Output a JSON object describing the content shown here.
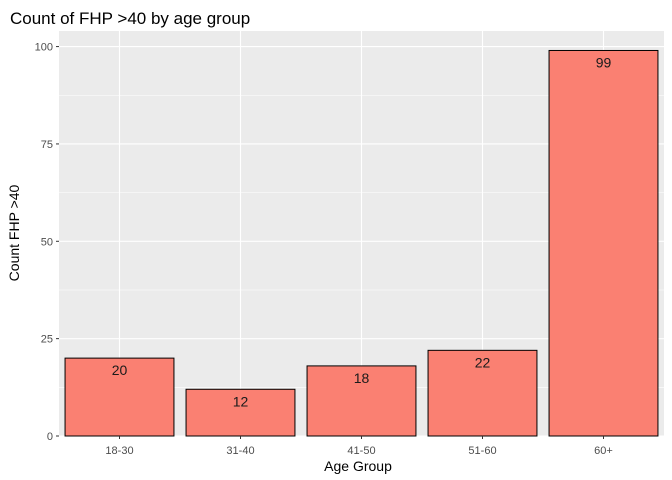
{
  "chart_data": {
    "type": "bar",
    "title": "Count of FHP >40 by age group",
    "xlabel": "Age Group",
    "ylabel": "Count FHP >40",
    "categories": [
      "18-30",
      "31-40",
      "41-50",
      "51-60",
      "60+"
    ],
    "values": [
      20,
      12,
      18,
      22,
      99
    ],
    "data_labels": [
      "20",
      "12",
      "18",
      "22",
      "99"
    ],
    "ylim": [
      0,
      104
    ],
    "yticks": [
      0,
      25,
      50,
      75,
      100
    ],
    "ytick_labels": [
      "0",
      "25",
      "50",
      "75",
      "100"
    ],
    "grid": true,
    "legend": "none",
    "colors": {
      "bar_fill": "#FA8072",
      "bar_stroke": "#000000",
      "panel_background": "#EBEBEB",
      "grid_major": "#FFFFFF"
    }
  }
}
